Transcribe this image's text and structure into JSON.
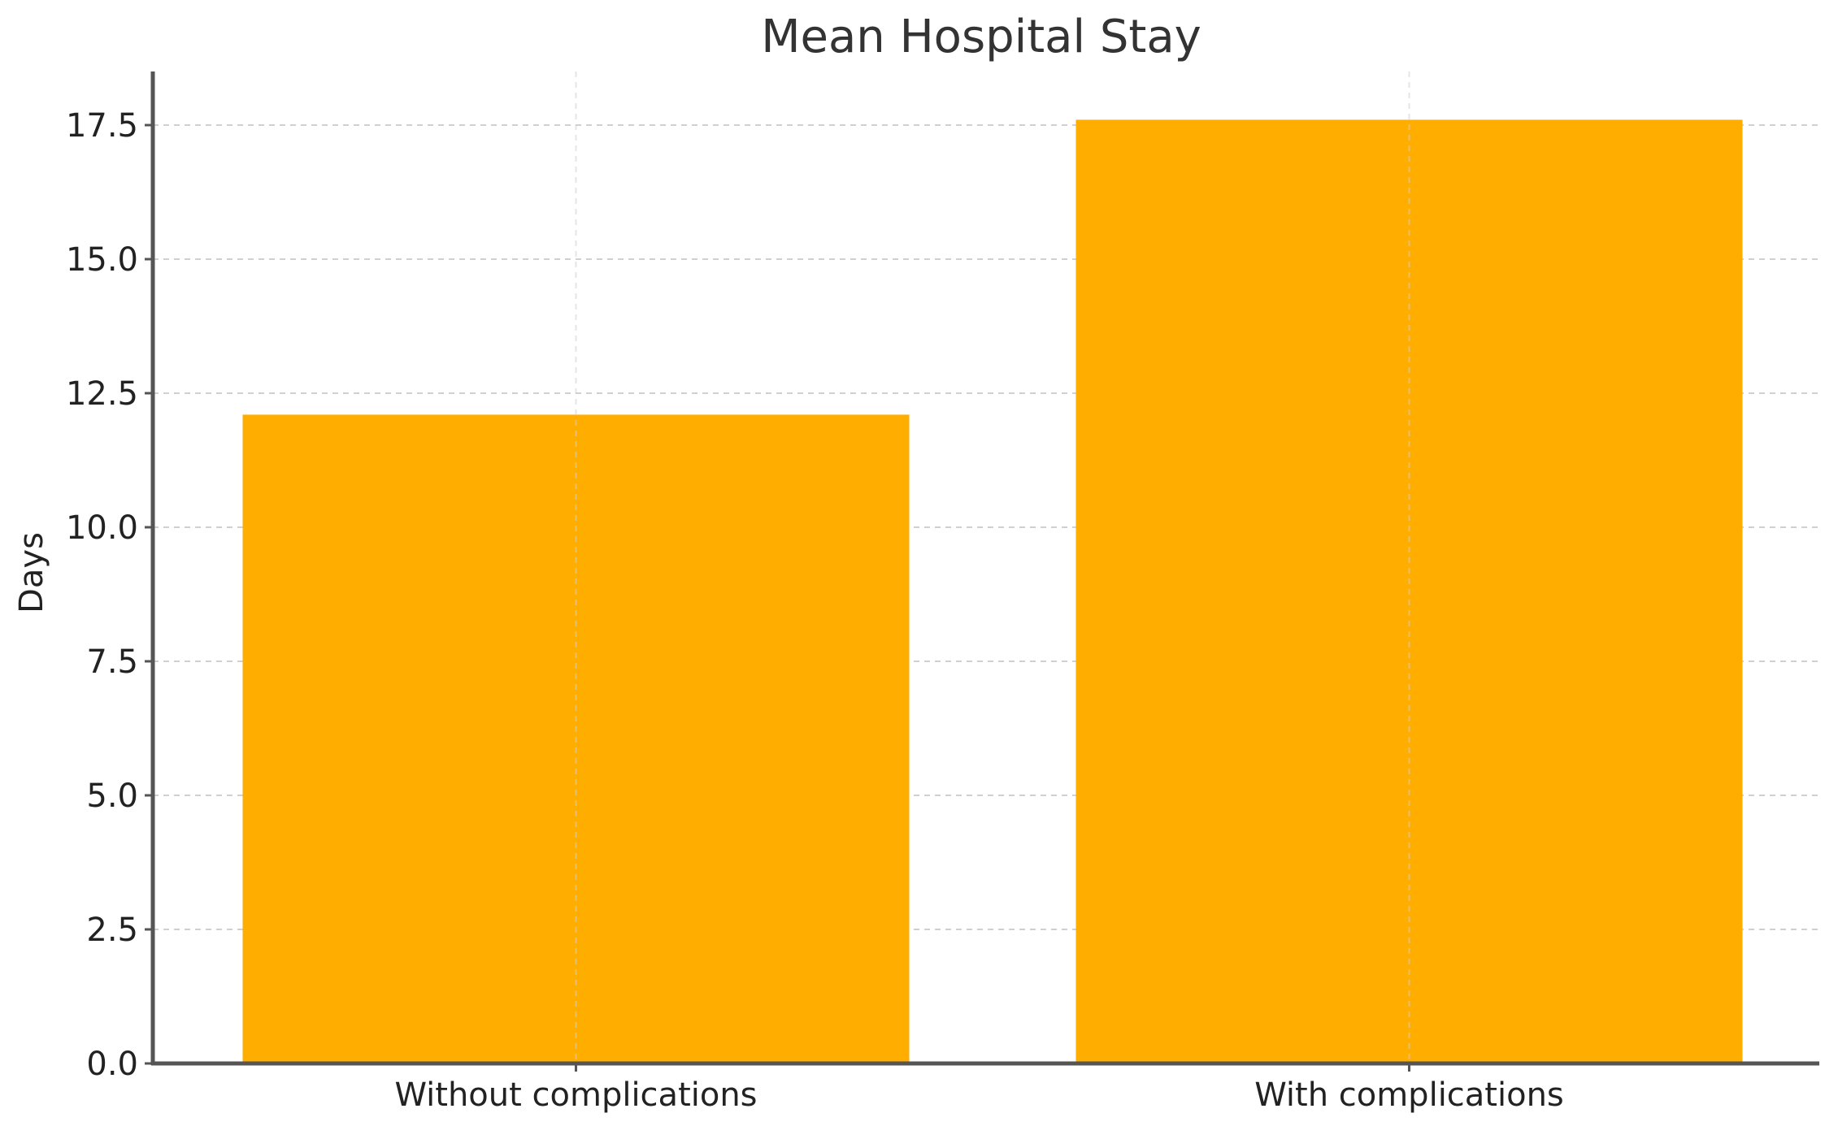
{
  "chart_data": {
    "type": "bar",
    "title": "Mean Hospital Stay",
    "xlabel": "",
    "ylabel": "Days",
    "categories": [
      "Without complications",
      "With complications"
    ],
    "values": [
      12.1,
      17.6
    ],
    "ylim": [
      0,
      18.5
    ],
    "yticks": [
      0.0,
      2.5,
      5.0,
      7.5,
      10.0,
      12.5,
      15.0,
      17.5
    ],
    "ytick_labels": [
      "0.0",
      "2.5",
      "5.0",
      "7.5",
      "10.0",
      "12.5",
      "15.0",
      "17.5"
    ],
    "bar_color": "#FFAE00",
    "grid": true,
    "legend": "none"
  }
}
